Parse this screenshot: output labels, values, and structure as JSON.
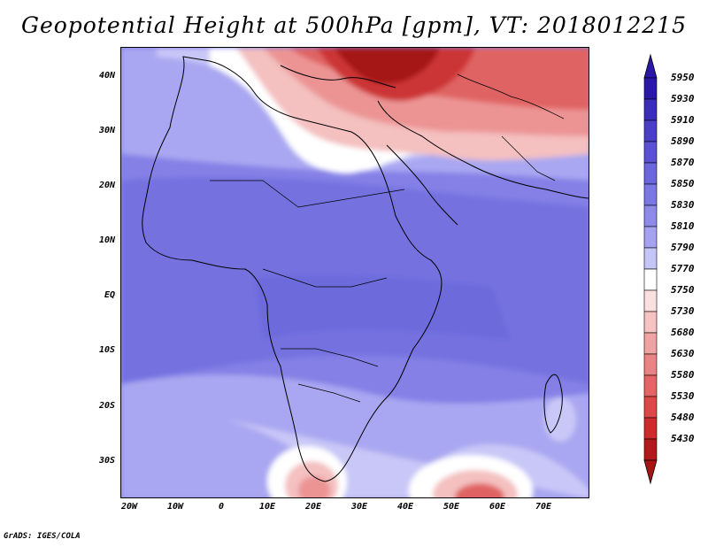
{
  "title": "Geopotential Height at 500hPa [gpm], VT: 2018012215",
  "credit": "GrADS: IGES/COLA",
  "lat_labels": [
    "40N",
    "30N",
    "20N",
    "10N",
    "EQ",
    "10S",
    "20S",
    "30S"
  ],
  "lon_labels": [
    "20W",
    "10W",
    "0",
    "10E",
    "20E",
    "30E",
    "40E",
    "50E",
    "60E",
    "70E"
  ],
  "colorbar": {
    "levels": [
      "5950",
      "5930",
      "5910",
      "5890",
      "5870",
      "5850",
      "5830",
      "5810",
      "5790",
      "5770",
      "5750",
      "5730",
      "5680",
      "5630",
      "5580",
      "5530",
      "5480",
      "5430"
    ],
    "colors": [
      "#2a18a6",
      "#3a2db8",
      "#4a40c6",
      "#5a52d2",
      "#6b66dc",
      "#7b78e4",
      "#8d8aea",
      "#a5a3f1",
      "#c6c5f7",
      "#ffffff",
      "#fbe0e0",
      "#f6c2c2",
      "#f0a3a3",
      "#ea8484",
      "#e36565",
      "#db4848",
      "#cc2c2c",
      "#b01a1a"
    ],
    "top_arrow_color": "#2a18a6",
    "bottom_arrow_color": "#a81414"
  }
}
